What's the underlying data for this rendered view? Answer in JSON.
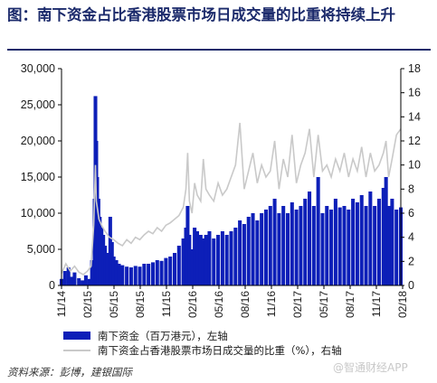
{
  "title": "图：南下资金占比香港股票市场日成交量的比重将持续上升",
  "source": "资料来源：彭博，建银国际",
  "watermark": "@智通财经APP",
  "colors": {
    "bars": "#0d1fb8",
    "line": "#c9c9c9",
    "title": "#1b2a6b"
  },
  "chart_data": {
    "type": "bar",
    "y_left": {
      "min": 0,
      "max": 30000,
      "ticks": [
        "0",
        "5,000",
        "10,000",
        "15,000",
        "20,000",
        "25,000",
        "30,000"
      ]
    },
    "y_right": {
      "min": 0,
      "max": 18,
      "ticks": [
        "0",
        "2",
        "4",
        "6",
        "8",
        "10",
        "12",
        "14",
        "16",
        "18"
      ]
    },
    "x_ticks": [
      "11/14",
      "02/15",
      "05/15",
      "08/15",
      "11/15",
      "02/16",
      "05/16",
      "08/16",
      "11/16",
      "02/17",
      "05/17",
      "08/17",
      "11/17",
      "02/18"
    ],
    "x_range_months": [
      0,
      16.5
    ],
    "series": [
      {
        "name": "南下资金（百万港元），左轴",
        "axis": "left",
        "type": "bar",
        "points": [
          [
            0.0,
            900
          ],
          [
            0.4,
            2000
          ],
          [
            0.8,
            2500
          ],
          [
            1.1,
            1200
          ],
          [
            1.5,
            1800
          ],
          [
            2.0,
            1000
          ],
          [
            2.4,
            700
          ],
          [
            2.8,
            1400
          ],
          [
            3.2,
            900
          ],
          [
            3.5,
            3500
          ],
          [
            3.8,
            12000
          ],
          [
            3.9,
            26200
          ],
          [
            4.0,
            20000
          ],
          [
            4.1,
            15000
          ],
          [
            4.25,
            12000
          ],
          [
            4.4,
            9500
          ],
          [
            4.6,
            8000
          ],
          [
            4.8,
            7000
          ],
          [
            5.0,
            5500
          ],
          [
            5.3,
            4500
          ],
          [
            5.6,
            9500
          ],
          [
            5.8,
            6000
          ],
          [
            6.0,
            4000
          ],
          [
            6.3,
            3500
          ],
          [
            6.6,
            3000
          ],
          [
            7.0,
            2800
          ],
          [
            7.5,
            2600
          ],
          [
            8.0,
            2500
          ],
          [
            8.5,
            2700
          ],
          [
            9.0,
            2600
          ],
          [
            9.5,
            3000
          ],
          [
            10.0,
            3000
          ],
          [
            10.5,
            3200
          ],
          [
            11.0,
            3500
          ],
          [
            11.5,
            3400
          ],
          [
            12.0,
            3800
          ],
          [
            12.5,
            4000
          ],
          [
            13.0,
            4500
          ],
          [
            13.5,
            5500
          ],
          [
            14.0,
            6500
          ],
          [
            14.3,
            8000
          ],
          [
            14.5,
            11000
          ],
          [
            14.7,
            7000
          ],
          [
            15.0,
            5000
          ],
          [
            15.3,
            8000
          ],
          [
            15.6,
            7500
          ],
          [
            16.0,
            7000
          ],
          [
            16.3,
            6500
          ],
          [
            16.6,
            7000
          ],
          [
            17.0,
            7500
          ],
          [
            17.5,
            6500
          ],
          [
            18.0,
            7000
          ],
          [
            18.5,
            7500
          ],
          [
            19.0,
            7000
          ],
          [
            19.5,
            7500
          ],
          [
            20.0,
            8000
          ],
          [
            20.5,
            9000
          ],
          [
            21.0,
            8500
          ],
          [
            21.5,
            9500
          ],
          [
            22.0,
            10000
          ],
          [
            22.5,
            9000
          ],
          [
            23.0,
            10000
          ],
          [
            23.5,
            10500
          ],
          [
            24.0,
            11000
          ],
          [
            24.5,
            12000
          ],
          [
            25.0,
            10000
          ],
          [
            25.5,
            11000
          ],
          [
            26.0,
            10000
          ],
          [
            26.5,
            11500
          ],
          [
            27.0,
            10500
          ],
          [
            27.5,
            11000
          ],
          [
            28.0,
            12000
          ],
          [
            28.5,
            13000
          ],
          [
            29.0,
            11000
          ],
          [
            29.5,
            15000
          ],
          [
            30.0,
            10000
          ],
          [
            30.5,
            11000
          ],
          [
            31.0,
            10500
          ],
          [
            31.5,
            12000
          ],
          [
            32.0,
            10800
          ],
          [
            32.5,
            11000
          ],
          [
            33.0,
            10500
          ],
          [
            33.5,
            12000
          ],
          [
            34.0,
            11500
          ],
          [
            34.5,
            12500
          ],
          [
            35.0,
            11000
          ],
          [
            35.5,
            13000
          ],
          [
            36.0,
            11000
          ],
          [
            36.5,
            12000
          ],
          [
            37.0,
            13500
          ],
          [
            37.3,
            15000
          ],
          [
            37.6,
            11000
          ],
          [
            38.0,
            12000
          ],
          [
            38.5,
            10500
          ],
          [
            39.0,
            10800
          ]
        ]
      },
      {
        "name": "南下资金占香港股票市场日成交量的比重（%），右轴",
        "axis": "right",
        "type": "line",
        "points": [
          [
            0.0,
            1.0
          ],
          [
            0.5,
            1.8
          ],
          [
            1.0,
            1.2
          ],
          [
            1.5,
            1.6
          ],
          [
            2.0,
            1.1
          ],
          [
            2.5,
            0.9
          ],
          [
            3.0,
            1.2
          ],
          [
            3.4,
            1.6
          ],
          [
            3.7,
            5.0
          ],
          [
            3.9,
            10.0
          ],
          [
            4.0,
            7.0
          ],
          [
            4.3,
            5.5
          ],
          [
            4.6,
            5.0
          ],
          [
            5.0,
            4.5
          ],
          [
            5.5,
            4.0
          ],
          [
            6.0,
            3.8
          ],
          [
            6.5,
            3.5
          ],
          [
            7.0,
            3.3
          ],
          [
            7.5,
            3.8
          ],
          [
            8.0,
            3.5
          ],
          [
            8.5,
            4.0
          ],
          [
            9.0,
            3.8
          ],
          [
            9.5,
            4.2
          ],
          [
            10.0,
            4.5
          ],
          [
            10.5,
            4.3
          ],
          [
            11.0,
            4.8
          ],
          [
            11.5,
            4.5
          ],
          [
            12.0,
            5.0
          ],
          [
            12.5,
            5.2
          ],
          [
            13.0,
            5.5
          ],
          [
            13.5,
            5.8
          ],
          [
            14.0,
            6.5
          ],
          [
            14.3,
            8.0
          ],
          [
            14.5,
            11.0
          ],
          [
            14.7,
            7.0
          ],
          [
            15.0,
            6.0
          ],
          [
            15.3,
            8.5
          ],
          [
            15.6,
            7.5
          ],
          [
            16.0,
            7.0
          ],
          [
            16.3,
            10.5
          ],
          [
            16.6,
            8.0
          ],
          [
            17.0,
            7.5
          ],
          [
            17.5,
            7.0
          ],
          [
            18.0,
            8.5
          ],
          [
            18.5,
            7.5
          ],
          [
            19.0,
            8.0
          ],
          [
            19.5,
            9.0
          ],
          [
            20.0,
            10.0
          ],
          [
            20.5,
            13.5
          ],
          [
            21.0,
            8.0
          ],
          [
            21.5,
            9.5
          ],
          [
            22.0,
            11.0
          ],
          [
            22.5,
            8.5
          ],
          [
            23.0,
            10.0
          ],
          [
            23.5,
            9.0
          ],
          [
            24.0,
            9.5
          ],
          [
            24.5,
            12.0
          ],
          [
            25.0,
            8.0
          ],
          [
            25.5,
            10.5
          ],
          [
            26.0,
            9.0
          ],
          [
            26.5,
            12.5
          ],
          [
            27.0,
            8.5
          ],
          [
            27.5,
            10.0
          ],
          [
            28.0,
            11.0
          ],
          [
            28.5,
            13.0
          ],
          [
            29.0,
            9.0
          ],
          [
            29.5,
            12.5
          ],
          [
            30.0,
            9.5
          ],
          [
            30.5,
            10.0
          ],
          [
            31.0,
            9.0
          ],
          [
            31.5,
            10.5
          ],
          [
            32.0,
            9.5
          ],
          [
            32.5,
            11.0
          ],
          [
            33.0,
            9.0
          ],
          [
            33.5,
            10.5
          ],
          [
            34.0,
            9.5
          ],
          [
            34.5,
            11.5
          ],
          [
            35.0,
            9.0
          ],
          [
            35.5,
            11.0
          ],
          [
            36.0,
            9.5
          ],
          [
            36.5,
            10.0
          ],
          [
            37.0,
            11.0
          ],
          [
            37.3,
            12.0
          ],
          [
            37.6,
            9.0
          ],
          [
            38.0,
            10.5
          ],
          [
            38.5,
            12.5
          ],
          [
            39.0,
            13.0
          ]
        ]
      }
    ]
  }
}
